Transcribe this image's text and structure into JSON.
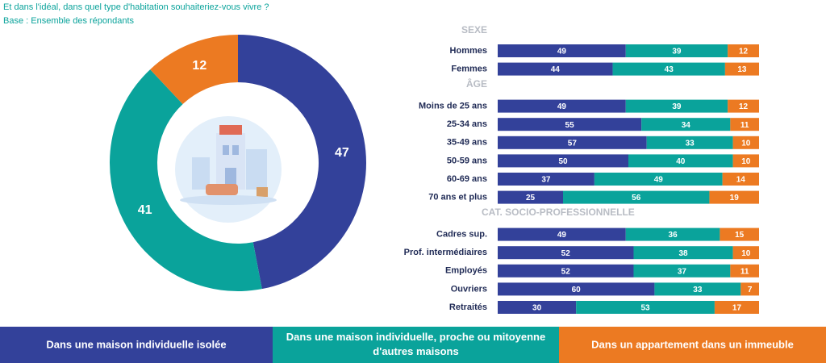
{
  "chart_data": [
    {
      "type": "donut",
      "title": "Et dans l'idéal, dans quel type d'habitation souhaiteriez-vous vivre ?",
      "subtitle": "Base : Ensemble des répondants",
      "values": [
        47,
        41,
        12
      ],
      "colors": [
        "#33419a",
        "#0aa39b",
        "#ec7a22"
      ]
    },
    {
      "type": "stacked-bar-horizontal",
      "xlim": [
        0,
        100
      ],
      "series": [
        {
          "name": "Dans une maison individuelle isolée",
          "color": "#33419a"
        },
        {
          "name": "Dans une maison individuelle, proche ou mitoyenne d'autres maisons",
          "color": "#0aa39b"
        },
        {
          "name": "Dans un appartement dans un immeuble",
          "color": "#ec7a22"
        }
      ],
      "groups": [
        {
          "title": "SEXE",
          "categories": [
            "Hommes",
            "Femmes"
          ],
          "values": [
            [
              49,
              39,
              12
            ],
            [
              44,
              43,
              13
            ]
          ]
        },
        {
          "title": "ÂGE",
          "categories": [
            "Moins de 25 ans",
            "25-34 ans",
            "35-49 ans",
            "50-59 ans",
            "60-69 ans",
            "70 ans et plus"
          ],
          "values": [
            [
              49,
              39,
              12
            ],
            [
              55,
              34,
              11
            ],
            [
              57,
              33,
              10
            ],
            [
              50,
              40,
              10
            ],
            [
              37,
              49,
              14
            ],
            [
              25,
              56,
              19
            ]
          ]
        },
        {
          "title": "CAT. SOCIO-PROFESSIONNELLE",
          "categories": [
            "Cadres sup.",
            "Prof. intermédiaires",
            "Employés",
            "Ouvriers",
            "Retraités"
          ],
          "values": [
            [
              49,
              36,
              15
            ],
            [
              52,
              38,
              10
            ],
            [
              52,
              37,
              11
            ],
            [
              60,
              33,
              7
            ],
            [
              30,
              53,
              17
            ]
          ]
        }
      ]
    }
  ]
}
